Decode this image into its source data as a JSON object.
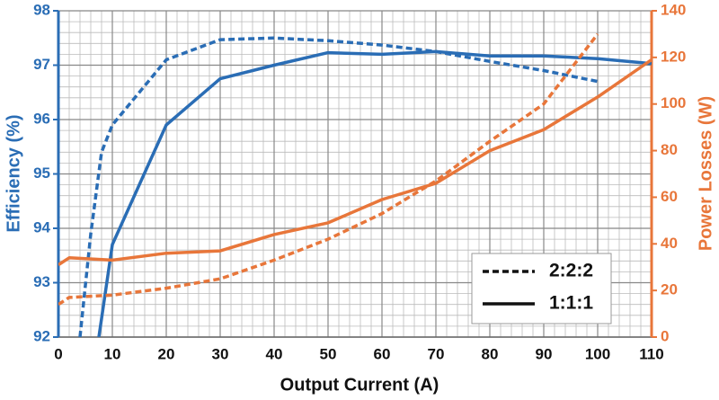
{
  "chart_data": {
    "type": "line",
    "xlabel": "Output Current (A)",
    "ylabel": "Efficiency (%)",
    "y2label": "Power Losses (W)",
    "xlim": [
      0,
      110
    ],
    "xticks": [
      0,
      10,
      20,
      30,
      40,
      50,
      60,
      70,
      80,
      90,
      100,
      110
    ],
    "ylim": [
      92,
      98
    ],
    "yticks": [
      92,
      93,
      94,
      95,
      96,
      97,
      98
    ],
    "y2lim": [
      0,
      140
    ],
    "y2ticks": [
      0,
      20,
      40,
      60,
      80,
      100,
      120,
      140
    ],
    "grid": true,
    "ycolor": "#2a6db5",
    "y2color": "#e8763a",
    "legend_position": "lower right",
    "legend": [
      {
        "name": "2:2:2",
        "style": "dashed"
      },
      {
        "name": "1:1:1",
        "style": "solid"
      }
    ],
    "series": [
      {
        "style": "dashed",
        "color": "#2a6db5",
        "axis": "y",
        "x": [
          4,
          6,
          8,
          10,
          20,
          30,
          40,
          50,
          60,
          70,
          80,
          90,
          100
        ],
        "y": [
          92,
          93.9,
          95.4,
          95.9,
          97.1,
          97.47,
          97.5,
          97.45,
          97.37,
          97.25,
          97.07,
          96.9,
          96.7
        ]
      },
      {
        "style": "solid",
        "color": "#2a6db5",
        "axis": "y",
        "x": [
          7.5,
          10,
          20,
          30,
          40,
          50,
          60,
          70,
          80,
          90,
          100,
          110
        ],
        "y": [
          92,
          93.7,
          95.9,
          96.75,
          97.0,
          97.23,
          97.2,
          97.25,
          97.17,
          97.17,
          97.12,
          97.03
        ]
      },
      {
        "style": "dashed",
        "color": "#e8763a",
        "axis": "y2",
        "x": [
          0,
          2,
          10,
          20,
          30,
          40,
          50,
          60,
          70,
          80,
          90,
          100
        ],
        "y": [
          14,
          17,
          18,
          21,
          25,
          33,
          42,
          53,
          67,
          84,
          100,
          130
        ]
      },
      {
        "style": "solid",
        "color": "#e8763a",
        "axis": "y2",
        "x": [
          0,
          2,
          10,
          20,
          30,
          40,
          50,
          60,
          70,
          80,
          90,
          100,
          110
        ],
        "y": [
          31,
          34,
          33,
          36,
          37,
          44,
          49,
          59,
          66,
          80,
          89,
          103,
          119
        ]
      }
    ]
  }
}
